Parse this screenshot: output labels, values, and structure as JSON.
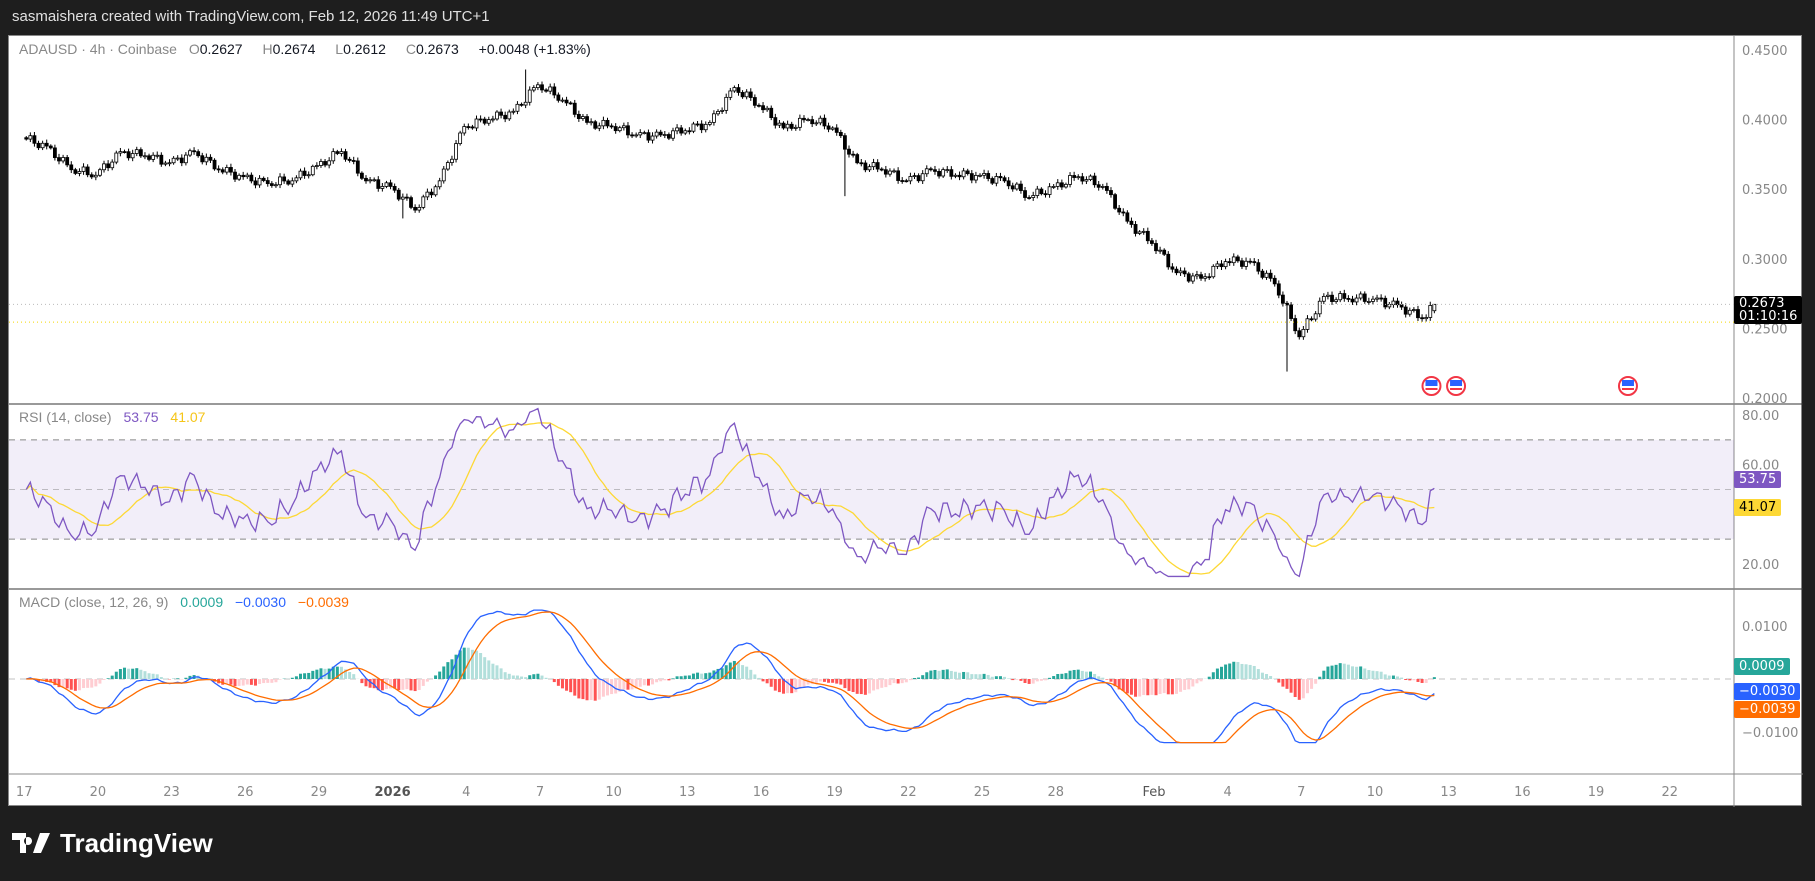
{
  "header": {
    "text": "sasmaishera created with TradingView.com, Feb 12, 2026 11:49 UTC+1"
  },
  "legend": {
    "symbol": "ADAUSD · 4h · Coinbase",
    "o_label": "O",
    "o": "0.2627",
    "h_label": "H",
    "h": "0.2674",
    "l_label": "L",
    "l": "0.2612",
    "c_label": "C",
    "c": "0.2673",
    "change": "+0.0048 (+1.83%)"
  },
  "price_tag": {
    "price": "0.2673",
    "countdown": "01:10:16"
  },
  "rsi": {
    "label": "RSI (14, close)",
    "value": "53.75",
    "ma": "41.07"
  },
  "macd": {
    "label": "MACD (close, 12, 26, 9)",
    "hist": "0.0009",
    "macd": "−0.0030",
    "signal": "−0.0039"
  },
  "logo": {
    "text": "TradingView"
  },
  "colors": {
    "rsi": "#7e57c2",
    "rsi_ma": "#fdd835",
    "macd": "#2962ff",
    "signal": "#ff6d00",
    "hist_up": "#26a69a",
    "hist_up_fade": "#b2dfdb",
    "hist_dn": "#ff5252",
    "hist_dn_fade": "#ffcdd2",
    "prev_close": "#f5d800"
  },
  "chart_data": {
    "type": "candlestick",
    "interval": "4h",
    "price_axis": {
      "ticks": [
        "0.4500",
        "0.4000",
        "0.3500",
        "0.3000",
        "0.2500",
        "0.2000"
      ],
      "range": [
        0.2,
        0.45
      ]
    },
    "rsi_axis": {
      "ticks": [
        "80.00",
        "60.00",
        "20.00"
      ],
      "range": [
        20,
        80
      ],
      "bands": [
        30,
        50,
        70
      ]
    },
    "macd_axis": {
      "ticks": [
        "0.0100",
        "−0.0100"
      ],
      "range": [
        -0.01,
        0.01
      ]
    },
    "time_axis": [
      [
        "17",
        "2025-12-17"
      ],
      [
        "20",
        "2025-12-20"
      ],
      [
        "23",
        "2025-12-23"
      ],
      [
        "26",
        "2025-12-26"
      ],
      [
        "29",
        "2025-12-29"
      ],
      [
        "2026",
        "2026-01-01"
      ],
      [
        "4",
        "2026-01-04"
      ],
      [
        "7",
        "2026-01-07"
      ],
      [
        "10",
        "2026-01-10"
      ],
      [
        "13",
        "2026-01-13"
      ],
      [
        "16",
        "2026-01-16"
      ],
      [
        "19",
        "2026-01-19"
      ],
      [
        "22",
        "2026-01-22"
      ],
      [
        "25",
        "2026-01-25"
      ],
      [
        "28",
        "2026-01-28"
      ],
      [
        "Feb",
        "2026-02-01"
      ],
      [
        "4",
        "2026-02-04"
      ],
      [
        "7",
        "2026-02-07"
      ],
      [
        "10",
        "2026-02-10"
      ],
      [
        "13",
        "2026-02-13"
      ],
      [
        "16",
        "2026-02-16"
      ],
      [
        "19",
        "2026-02-19"
      ],
      [
        "22",
        "2026-02-22"
      ]
    ],
    "daily_closes": [
      [
        "2025-12-17",
        0.381
      ],
      [
        "2025-12-18",
        0.364
      ],
      [
        "2025-12-19",
        0.36
      ],
      [
        "2025-12-20",
        0.377
      ],
      [
        "2025-12-21",
        0.374
      ],
      [
        "2025-12-22",
        0.369
      ],
      [
        "2025-12-23",
        0.377
      ],
      [
        "2025-12-24",
        0.364
      ],
      [
        "2025-12-25",
        0.359
      ],
      [
        "2025-12-26",
        0.354
      ],
      [
        "2025-12-27",
        0.356
      ],
      [
        "2025-12-28",
        0.367
      ],
      [
        "2025-12-29",
        0.377
      ],
      [
        "2025-12-30",
        0.356
      ],
      [
        "2025-12-31",
        0.352
      ],
      [
        "2026-01-01",
        0.335
      ],
      [
        "2026-01-02",
        0.356
      ],
      [
        "2026-01-03",
        0.395
      ],
      [
        "2026-01-04",
        0.4
      ],
      [
        "2026-01-05",
        0.406
      ],
      [
        "2026-01-06",
        0.425
      ],
      [
        "2026-01-07",
        0.414
      ],
      [
        "2026-01-08",
        0.398
      ],
      [
        "2026-01-09",
        0.395
      ],
      [
        "2026-01-10",
        0.389
      ],
      [
        "2026-01-11",
        0.389
      ],
      [
        "2026-01-12",
        0.392
      ],
      [
        "2026-01-13",
        0.398
      ],
      [
        "2026-01-14",
        0.423
      ],
      [
        "2026-01-15",
        0.41
      ],
      [
        "2026-01-16",
        0.394
      ],
      [
        "2026-01-17",
        0.4
      ],
      [
        "2026-01-18",
        0.394
      ],
      [
        "2026-01-19",
        0.369
      ],
      [
        "2026-01-20",
        0.364
      ],
      [
        "2026-01-21",
        0.356
      ],
      [
        "2026-01-22",
        0.364
      ],
      [
        "2026-01-23",
        0.36
      ],
      [
        "2026-01-24",
        0.36
      ],
      [
        "2026-01-25",
        0.356
      ],
      [
        "2026-01-26",
        0.344
      ],
      [
        "2026-01-27",
        0.352
      ],
      [
        "2026-01-28",
        0.359
      ],
      [
        "2026-01-29",
        0.352
      ],
      [
        "2026-01-30",
        0.327
      ],
      [
        "2026-01-31",
        0.311
      ],
      [
        "2026-02-01",
        0.29
      ],
      [
        "2026-02-02",
        0.286
      ],
      [
        "2026-02-03",
        0.298
      ],
      [
        "2026-02-04",
        0.298
      ],
      [
        "2026-02-05",
        0.282
      ],
      [
        "2026-02-06",
        0.244
      ],
      [
        "2026-02-07",
        0.273
      ],
      [
        "2026-02-08",
        0.271
      ],
      [
        "2026-02-09",
        0.271
      ],
      [
        "2026-02-10",
        0.267
      ],
      [
        "2026-02-11",
        0.257
      ],
      [
        "2026-02-12",
        0.2673
      ]
    ],
    "extremes": [
      [
        "2026-01-06",
        "high",
        0.436
      ],
      [
        "2026-01-01",
        "low",
        0.329
      ],
      [
        "2026-01-19",
        "low",
        0.345
      ],
      [
        "2026-02-06",
        "low",
        0.219
      ]
    ],
    "last_candle": {
      "open": 0.2627,
      "high": 0.2674,
      "low": 0.2612,
      "close": 0.2673
    },
    "prev_close_line": 0.2545,
    "events": [
      [
        "us-flag-event",
        "2026-02-12"
      ],
      [
        "us-flag-event",
        "2026-02-13"
      ],
      [
        "us-flag-event",
        "2026-02-20"
      ]
    ]
  }
}
